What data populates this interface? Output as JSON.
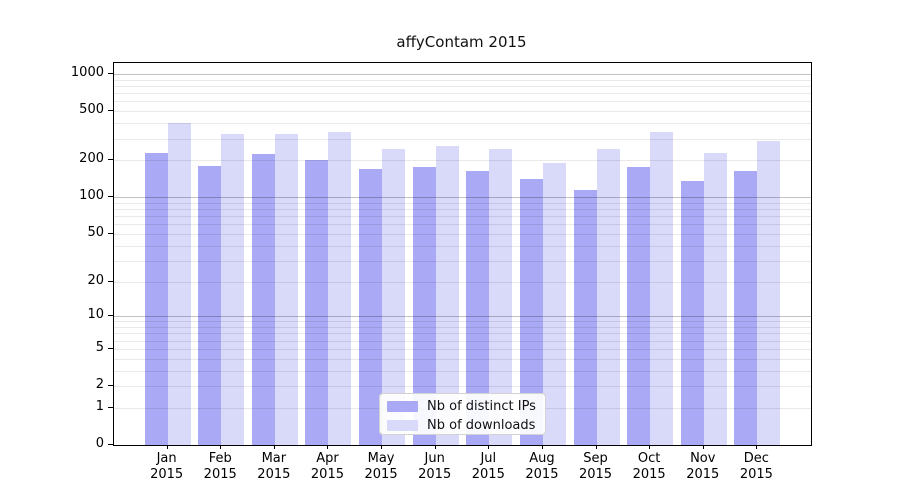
{
  "chart_data": {
    "type": "bar",
    "title": "affyContam 2015",
    "categories": [
      "Jan",
      "Feb",
      "Mar",
      "Apr",
      "May",
      "Jun",
      "Jul",
      "Aug",
      "Sep",
      "Oct",
      "Nov",
      "Dec"
    ],
    "year_label": "2015",
    "series": [
      {
        "name": "Nb of distinct IPs",
        "color": "#a9a9f5",
        "values": [
          230,
          180,
          225,
          200,
          170,
          175,
          165,
          140,
          115,
          175,
          135,
          165
        ]
      },
      {
        "name": "Nb of downloads",
        "color": "#d9d9fa",
        "values": [
          400,
          325,
          325,
          340,
          245,
          260,
          245,
          190,
          245,
          340,
          230,
          285
        ]
      }
    ],
    "xlabel": "",
    "ylabel": "",
    "y_axis": {
      "scale": "log1p",
      "tick_values": [
        0,
        1,
        2,
        5,
        10,
        20,
        50,
        100,
        200,
        500,
        1000
      ],
      "tick_labels": [
        "0",
        "1",
        "2",
        "5",
        "10",
        "20",
        "50",
        "100",
        "200",
        "500",
        "1000"
      ],
      "max_value": 1230
    },
    "gridlines": {
      "minor": [
        1,
        2,
        3,
        4,
        5,
        6,
        7,
        8,
        9,
        20,
        30,
        40,
        50,
        60,
        70,
        80,
        90,
        200,
        300,
        400,
        500,
        600,
        700,
        800,
        900
      ],
      "major": [
        10,
        100,
        1000
      ]
    },
    "legend_position": "bottom-center",
    "grid": true,
    "colors": {
      "background": "#ffffff",
      "spine": "#000000",
      "bar_distinct_ips": "#a9a9f5",
      "bar_downloads": "#d9d9fa"
    }
  }
}
